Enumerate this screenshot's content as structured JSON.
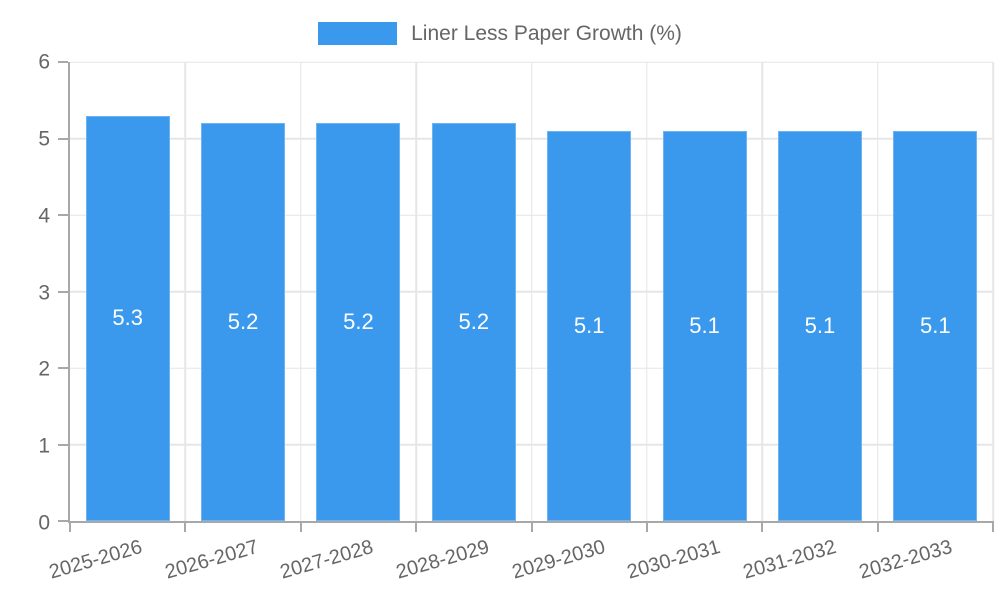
{
  "chart_data": {
    "type": "bar",
    "title": "Liner Less Paper Growth (%)",
    "legend": {
      "position": "top",
      "label": "Liner Less Paper Growth (%)"
    },
    "categories": [
      "2025-2026",
      "2026-2027",
      "2027-2028",
      "2028-2029",
      "2029-2030",
      "2030-2031",
      "2031-2032",
      "2032-2033"
    ],
    "values": [
      5.3,
      5.2,
      5.2,
      5.2,
      5.1,
      5.1,
      5.1,
      5.1
    ],
    "value_labels": [
      "5.3",
      "5.2",
      "5.2",
      "5.2",
      "5.1",
      "5.1",
      "5.1",
      "5.1"
    ],
    "xlabel": "",
    "ylabel": "",
    "ylim": [
      0,
      6
    ],
    "y_ticks": [
      0,
      1,
      2,
      3,
      4,
      5,
      6
    ],
    "grid": true,
    "x_label_rotation_deg": -16,
    "colors": {
      "bar": "#3A99ED",
      "bar_border": "#6FB4F2",
      "grid": "#e6e6e6",
      "axis": "#a8a8a8",
      "tick_text": "#666666",
      "value_text": "#ffffff",
      "legend_text": "#666666",
      "background": "#ffffff"
    }
  }
}
